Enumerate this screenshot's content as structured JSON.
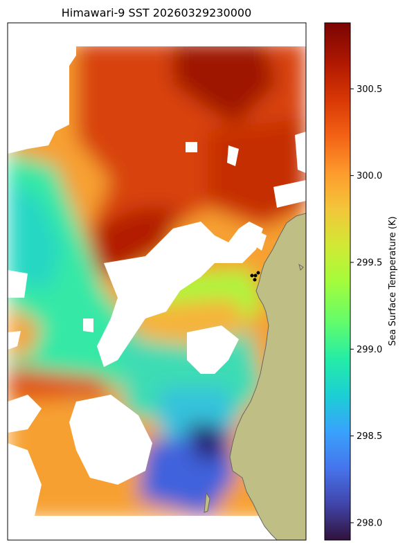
{
  "chart_data": {
    "type": "heatmap",
    "title": "Himawari-9 SST 20260329230000",
    "colorbar": {
      "label": "Sea Surface Temperature (K)",
      "range": [
        297.9,
        300.88
      ],
      "ticks": [
        298.0,
        298.5,
        299.0,
        299.5,
        300.0,
        300.5
      ],
      "tick_labels": [
        "298.0",
        "298.5",
        "299.0",
        "299.5",
        "300.0",
        "300.5"
      ],
      "colormap": "turbo"
    },
    "grid": false,
    "features": {
      "land_color": "#bfbf85",
      "no_data_color": "#ffffff",
      "marker_points": 4,
      "marker_color": "#000000"
    }
  }
}
